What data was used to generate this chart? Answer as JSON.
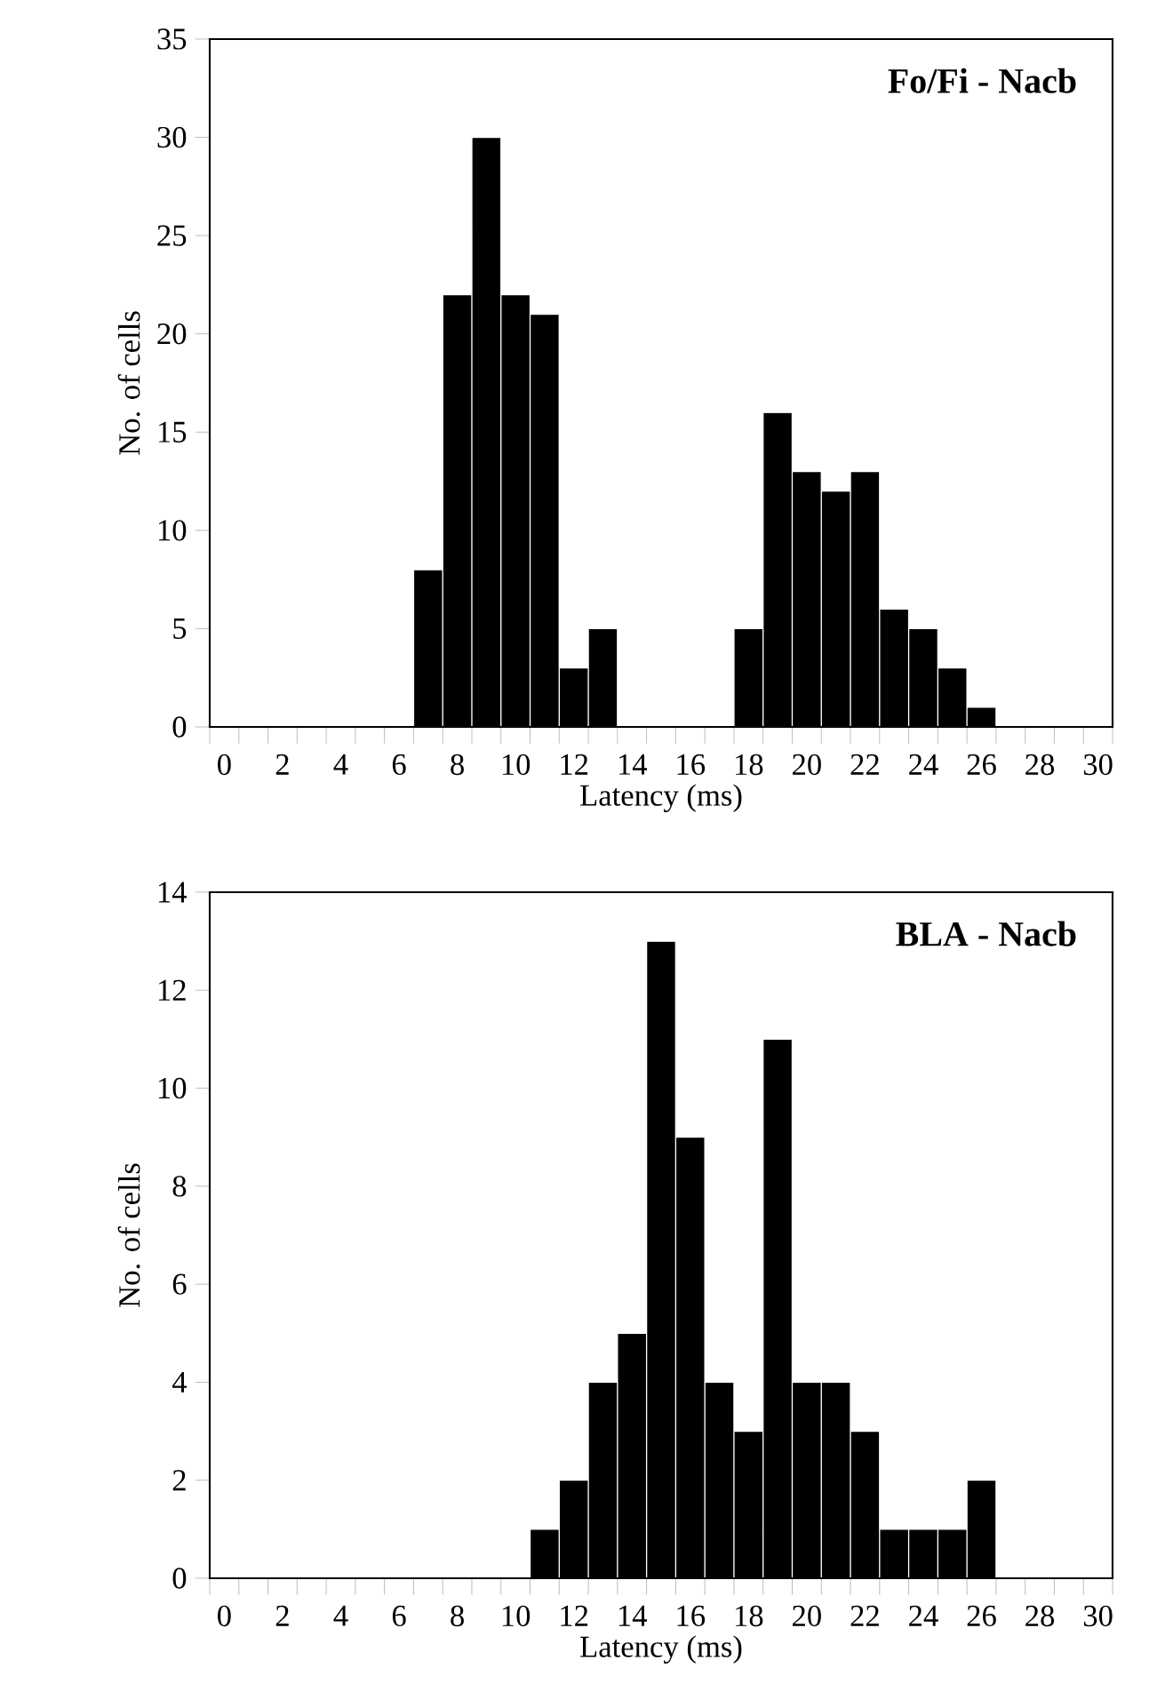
{
  "chart_data": [
    {
      "type": "histogram",
      "title": "Fo/Fi - Nacb",
      "xlabel": "Latency (ms)",
      "ylabel": "No. of cells",
      "color": "#000000",
      "bins": [
        6.5,
        7.5,
        8.5,
        9.5,
        10.5,
        11.5,
        12.5,
        13.5,
        14.5,
        15.5,
        16.5,
        17.5,
        18.5,
        19.5,
        20.5,
        21.5,
        22.5,
        23.5,
        24.5,
        25.5,
        26.5
      ],
      "values": [
        8,
        22,
        30,
        22,
        21,
        3,
        5,
        0,
        0,
        0,
        0,
        5,
        16,
        13,
        12,
        13,
        6,
        5,
        3,
        1
      ],
      "xlim": [
        -0.5,
        30.5
      ],
      "ylim": [
        0,
        35
      ],
      "xticks": [
        0,
        2,
        4,
        6,
        8,
        10,
        12,
        14,
        16,
        18,
        20,
        22,
        24,
        26,
        28,
        30,
        {
          "value": -0.5,
          "label": null
        },
        {
          "value": 0.5,
          "label": null
        },
        {
          "value": 1.5,
          "label": null
        },
        {
          "value": 2.5,
          "label": null
        },
        {
          "value": 3.5,
          "label": null
        },
        {
          "value": 4.5,
          "label": null
        },
        {
          "value": 5.5,
          "label": null
        },
        {
          "value": 6.5,
          "label": null
        },
        {
          "value": 7.5,
          "label": null
        },
        {
          "value": 8.5,
          "label": null
        },
        {
          "value": 9.5,
          "label": null
        },
        {
          "value": 10.5,
          "label": null
        },
        {
          "value": 11.5,
          "label": null
        },
        {
          "value": 12.5,
          "label": null
        },
        {
          "value": 13.5,
          "label": null
        },
        {
          "value": 14.5,
          "label": null
        },
        {
          "value": 15.5,
          "label": null
        },
        {
          "value": 16.5,
          "label": null
        },
        {
          "value": 17.5,
          "label": null
        },
        {
          "value": 18.5,
          "label": null
        },
        {
          "value": 19.5,
          "label": null
        },
        {
          "value": 20.5,
          "label": null
        },
        {
          "value": 21.5,
          "label": null
        },
        {
          "value": 22.5,
          "label": null
        },
        {
          "value": 23.5,
          "label": null
        },
        {
          "value": 24.5,
          "label": null
        },
        {
          "value": 25.5,
          "label": null
        },
        {
          "value": 26.5,
          "label": null
        },
        {
          "value": 27.5,
          "label": null
        },
        {
          "value": 28.5,
          "label": null
        },
        {
          "value": 29.5,
          "label": null
        },
        {
          "value": 30.5,
          "label": null
        }
      ],
      "yticks": [
        0,
        5,
        10,
        15,
        20,
        25,
        30,
        35
      ]
    },
    {
      "type": "histogram",
      "title": "BLA - Nacb",
      "xlabel": "Latency (ms)",
      "ylabel": "No. of cells",
      "color": "#000000",
      "bins": [
        10.5,
        11.5,
        12.5,
        13.5,
        14.5,
        15.5,
        16.5,
        17.5,
        18.5,
        19.5,
        20.5,
        21.5,
        22.5,
        23.5,
        24.5,
        25.5,
        26.5
      ],
      "values": [
        1,
        2,
        4,
        5,
        13,
        9,
        4,
        3,
        11,
        4,
        4,
        3,
        1,
        1,
        1,
        2
      ],
      "xlim": [
        -0.5,
        30.5
      ],
      "ylim": [
        0,
        14
      ],
      "xticks": [
        0,
        2,
        4,
        6,
        8,
        10,
        12,
        14,
        16,
        18,
        20,
        22,
        24,
        26,
        28,
        30,
        {
          "value": -0.5,
          "label": null
        },
        {
          "value": 0.5,
          "label": null
        },
        {
          "value": 1.5,
          "label": null
        },
        {
          "value": 2.5,
          "label": null
        },
        {
          "value": 3.5,
          "label": null
        },
        {
          "value": 4.5,
          "label": null
        },
        {
          "value": 5.5,
          "label": null
        },
        {
          "value": 6.5,
          "label": null
        },
        {
          "value": 7.5,
          "label": null
        },
        {
          "value": 8.5,
          "label": null
        },
        {
          "value": 9.5,
          "label": null
        },
        {
          "value": 10.5,
          "label": null
        },
        {
          "value": 11.5,
          "label": null
        },
        {
          "value": 12.5,
          "label": null
        },
        {
          "value": 13.5,
          "label": null
        },
        {
          "value": 14.5,
          "label": null
        },
        {
          "value": 15.5,
          "label": null
        },
        {
          "value": 16.5,
          "label": null
        },
        {
          "value": 17.5,
          "label": null
        },
        {
          "value": 18.5,
          "label": null
        },
        {
          "value": 19.5,
          "label": null
        },
        {
          "value": 20.5,
          "label": null
        },
        {
          "value": 21.5,
          "label": null
        },
        {
          "value": 22.5,
          "label": null
        },
        {
          "value": 23.5,
          "label": null
        },
        {
          "value": 24.5,
          "label": null
        },
        {
          "value": 25.5,
          "label": null
        },
        {
          "value": 26.5,
          "label": null
        },
        {
          "value": 27.5,
          "label": null
        },
        {
          "value": 28.5,
          "label": null
        },
        {
          "value": 29.5,
          "label": null
        },
        {
          "value": 30.5,
          "label": null
        }
      ],
      "yticks": [
        0,
        2,
        4,
        6,
        8,
        10,
        12,
        14
      ]
    }
  ]
}
